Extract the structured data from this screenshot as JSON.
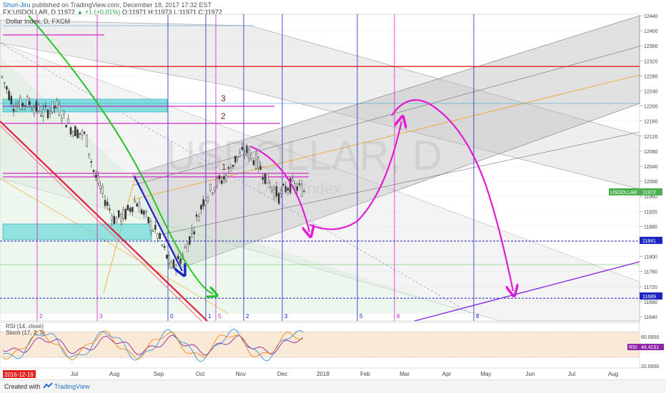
{
  "header": {
    "author": "Shun-Jiru",
    "published": "published on TradingView.com, December 18, 2017 17:32 EST",
    "quote": "FX:USDOLLAR, D  11972",
    "change": "▲ +1 (+0.01%)",
    "ohlc": "O:11971  H:11973  L:11971  C:11972"
  },
  "chart_data": {
    "type": "candlestick",
    "title": "Dollar Index, D, FXCM",
    "watermark_symbol": "USDOLLAR, D",
    "watermark_name": "Dollar Index",
    "x_ticks": [
      "Jul",
      "Aug",
      "Sep",
      "Oct",
      "Nov",
      "Dec",
      "2018",
      "Feb",
      "Mar",
      "Apr",
      "May",
      "Jun",
      "Jul",
      "Aug"
    ],
    "date_badge": "2016-12-19",
    "y_ticks": [
      12440,
      12400,
      12360,
      12320,
      12280,
      12240,
      12200,
      12160,
      12120,
      12080,
      12040,
      12000,
      11960,
      11920,
      11880,
      11840,
      11800,
      11760,
      11720,
      11680,
      11640
    ],
    "ylim": [
      11620,
      12450
    ],
    "last_price": 11972,
    "price_tag": "USDOLLAR",
    "price_value": "11972",
    "levels": {
      "red_line": 12305,
      "blue_dash_1": 11841,
      "blue_dash_2": 11689,
      "label_11841": "11841",
      "label_11689": "11689"
    },
    "resistance_labels": [
      "3",
      "2",
      "1"
    ],
    "cycle_labels": [
      "2",
      "3",
      "0",
      "1",
      "5",
      "2",
      "3",
      "5",
      "8",
      "8"
    ],
    "indicators": {
      "rsi_label": "RSI (14, close)",
      "stoch_label": "Stoch (17, 3, 3)",
      "rsi_tag": "RSI",
      "rsi_value": "46.4151",
      "y_ticks": [
        "60.0000",
        "20.0000"
      ]
    }
  },
  "footer": {
    "created_with": "Created with",
    "brand": "TradingView"
  }
}
